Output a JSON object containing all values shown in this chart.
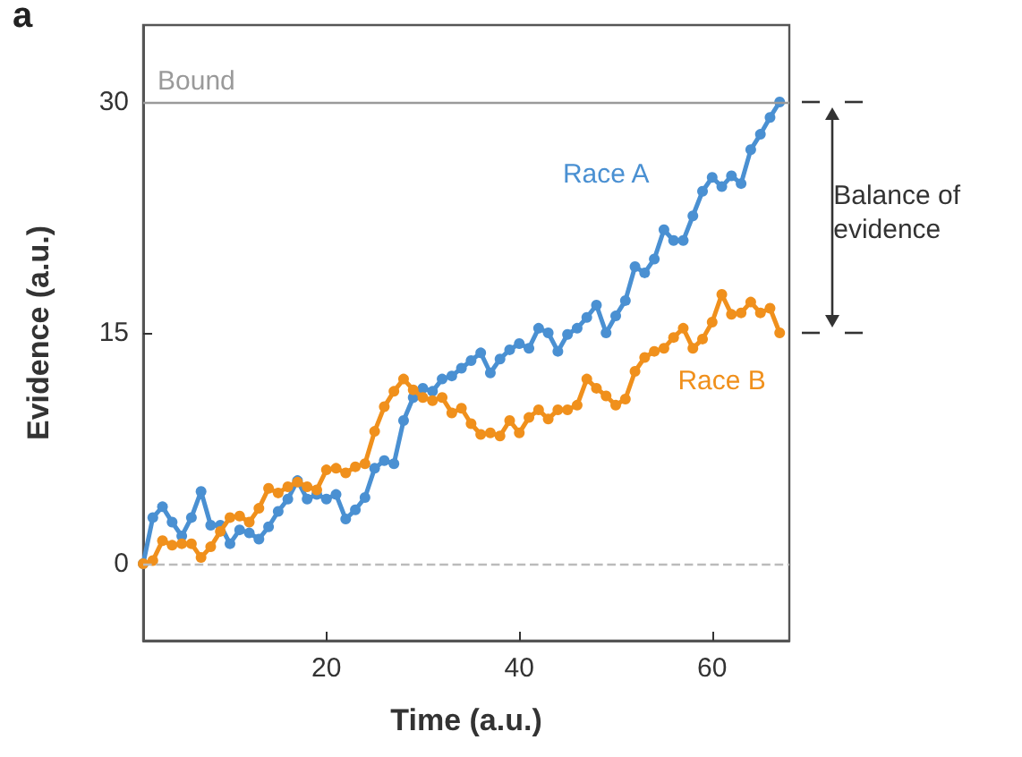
{
  "chart_data": {
    "type": "line",
    "title": "a",
    "xlabel": "Time (a.u.)",
    "ylabel": "Evidence (a.u.)",
    "x": [
      1,
      2,
      3,
      4,
      5,
      6,
      7,
      8,
      9,
      10,
      11,
      12,
      13,
      14,
      15,
      16,
      17,
      18,
      19,
      20,
      21,
      22,
      23,
      24,
      25,
      26,
      27,
      28,
      29,
      30,
      31,
      32,
      33,
      34,
      35,
      36,
      37,
      38,
      39,
      40,
      41,
      42,
      43,
      44,
      45,
      46,
      47,
      48,
      49,
      50,
      51,
      52,
      53,
      54,
      55,
      56,
      57,
      58,
      59,
      60,
      61,
      62,
      63,
      64,
      65,
      66,
      67
    ],
    "series": [
      {
        "name": "Race A",
        "color": "#4a90d2",
        "values": [
          0,
          3,
          3.7,
          2.7,
          1.8,
          3,
          4.7,
          2.5,
          2.5,
          1.3,
          2.2,
          2,
          1.6,
          2.4,
          3.4,
          4.2,
          5.4,
          4.2,
          4.5,
          4.2,
          4.5,
          2.9,
          3.5,
          4.3,
          6.2,
          6.7,
          6.5,
          9.3,
          10.8,
          11.4,
          11.2,
          12,
          12.2,
          12.7,
          13.2,
          13.7,
          12.4,
          13.3,
          13.9,
          14.3,
          14,
          15.3,
          15,
          13.8,
          14.9,
          15.3,
          16,
          16.8,
          15,
          16.1,
          17.1,
          19.3,
          18.9,
          19.8,
          21.7,
          21,
          21,
          22.6,
          24.2,
          25.1,
          24.5,
          25.2,
          24.7,
          26.9,
          27.9,
          29,
          30
        ]
      },
      {
        "name": "Race B",
        "color": "#f0901c",
        "values": [
          0,
          0.2,
          1.5,
          1.2,
          1.3,
          1.3,
          0.4,
          1.1,
          2.1,
          3,
          3.1,
          2.7,
          3.6,
          4.9,
          4.6,
          5,
          5.3,
          5,
          4.8,
          6.1,
          6.2,
          5.9,
          6.3,
          6.5,
          8.6,
          10.2,
          11.2,
          12,
          11.3,
          10.8,
          10.6,
          10.8,
          9.8,
          10.1,
          9.1,
          8.4,
          8.5,
          8.3,
          9.3,
          8.5,
          9.5,
          10,
          9.4,
          10,
          10,
          10.3,
          12,
          11.4,
          10.9,
          10.3,
          10.7,
          12.5,
          13.4,
          13.8,
          14,
          14.7,
          15.3,
          14,
          14.6,
          15.7,
          17.5,
          16.2,
          16.3,
          17,
          16.3,
          16.6,
          15
        ]
      }
    ],
    "xlim": [
      1,
      68
    ],
    "xticks": [
      20,
      40,
      60
    ],
    "ylim": [
      -5,
      35
    ],
    "yticks": [
      0,
      15,
      30
    ],
    "ref_lines": [
      {
        "axis": "y",
        "value": 30,
        "label": "Bound",
        "color": "#9a9a9a",
        "line_style": "solid"
      },
      {
        "axis": "y",
        "value": 0,
        "label": null,
        "color": "#bbbbbb",
        "line_style": "dashed"
      }
    ],
    "annotations": [
      "Balance of evidence"
    ],
    "marker": "circle",
    "line_style": "solid",
    "grid": false,
    "legend": false
  }
}
